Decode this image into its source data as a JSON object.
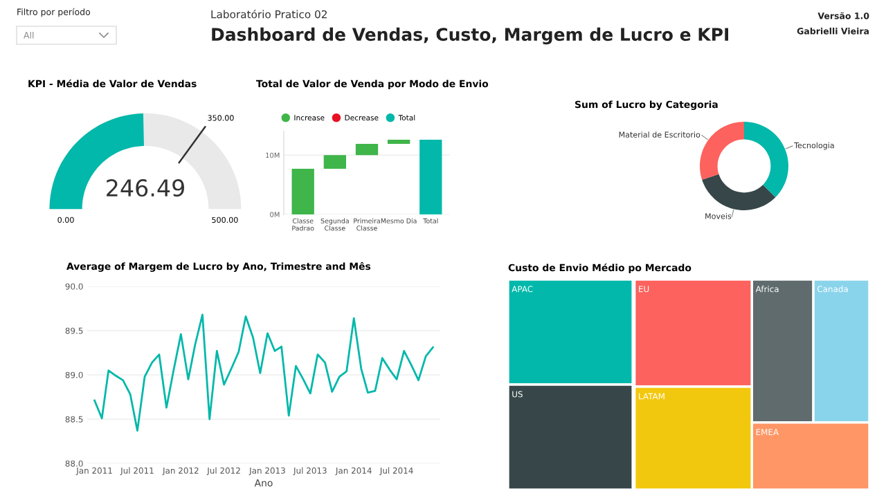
{
  "chart_data": [
    {
      "type": "other",
      "title": "Dashboard de Vendas, Custo, Margem de Lucro e KPI",
      "subtitle": "Laboratório Pratico 02",
      "annotations": [
        "Filtro por período",
        "All",
        "Versão 1.0",
        "Gabrielli Vieira"
      ]
    },
    {
      "type": "other",
      "title": "KPI - Média de Valor de Vendas",
      "values": [
        246.49
      ],
      "value_labels": [
        "246.49"
      ],
      "color": "#01b8aa",
      "annotations": [
        "0.00",
        "500.00",
        "350.00"
      ]
    },
    {
      "type": "bar",
      "title": "Total de Valor de Venda por Modo de Envio",
      "categories": [
        "Classe Padrao",
        "Segunda Classe",
        "Primeira Classe",
        "Mesmo Dia",
        "Total"
      ],
      "series": [
        {
          "name": "Increase",
          "color": "#3fb54a",
          "values": [
            7.7,
            2.3,
            1.9,
            0.7,
            null
          ],
          "base": [
            0,
            7.7,
            10.0,
            11.9,
            null
          ]
        },
        {
          "name": "Decrease",
          "color": "#e81123",
          "values": [
            null,
            null,
            null,
            null,
            null
          ]
        },
        {
          "name": "Total",
          "color": "#01b8aa",
          "values": [
            null,
            null,
            null,
            null,
            12.6
          ],
          "base": [
            null,
            null,
            null,
            null,
            0
          ]
        }
      ],
      "ylim": [
        0,
        14
      ],
      "yticks": [
        {
          "value": 0,
          "label": "0M"
        },
        {
          "value": 10,
          "label": "10M"
        }
      ],
      "grid": "y",
      "legend": "top left"
    },
    {
      "type": "donut",
      "title": "Sum of Lucro by Categoria",
      "categories": [
        "Tecnologia",
        "Moveis",
        "Material de Escritorio"
      ],
      "values": [
        37.5,
        32.5,
        30
      ],
      "colors": [
        "#01b8aa",
        "#374649",
        "#fd625e"
      ]
    },
    {
      "type": "line",
      "title": "Average of Margem de Lucro by Ano, Trimestre and Mês",
      "xlabel": "Ano",
      "x": [
        "2011-01",
        "2011-02",
        "2011-03",
        "2011-04",
        "2011-05",
        "2011-06",
        "2011-07",
        "2011-08",
        "2011-09",
        "2011-10",
        "2011-11",
        "2011-12",
        "2012-01",
        "2012-02",
        "2012-03",
        "2012-04",
        "2012-05",
        "2012-06",
        "2012-07",
        "2012-08",
        "2012-09",
        "2012-10",
        "2012-11",
        "2012-12",
        "2013-01",
        "2013-02",
        "2013-03",
        "2013-04",
        "2013-05",
        "2013-06",
        "2013-07",
        "2013-08",
        "2013-09",
        "2013-10",
        "2013-11",
        "2013-12",
        "2014-01",
        "2014-02",
        "2014-03",
        "2014-04",
        "2014-05",
        "2014-06",
        "2014-07",
        "2014-08",
        "2014-09",
        "2014-10",
        "2014-11",
        "2014-12"
      ],
      "series": [
        {
          "color": "#01b8aa",
          "values": [
            88.71,
            88.51,
            89.05,
            88.99,
            88.94,
            88.78,
            88.37,
            88.98,
            89.14,
            89.23,
            88.63,
            89.05,
            89.46,
            88.95,
            89.34,
            89.68,
            88.5,
            89.27,
            88.89,
            89.07,
            89.26,
            89.66,
            89.42,
            89.02,
            89.47,
            89.27,
            89.32,
            88.54,
            89.1,
            88.95,
            88.79,
            89.23,
            89.14,
            88.81,
            88.98,
            89.04,
            89.64,
            89.07,
            88.8,
            88.82,
            89.19,
            89.06,
            88.95,
            89.27,
            89.11,
            88.94,
            89.21,
            89.31
          ]
        }
      ],
      "xlim": [
        "2010-12-01",
        "2015-01-01"
      ],
      "xticks": [
        {
          "value": "2011-01",
          "label": "Jan 2011"
        },
        {
          "value": "2011-07",
          "label": "Jul 2011"
        },
        {
          "value": "2012-01",
          "label": "Jan 2012"
        },
        {
          "value": "2012-07",
          "label": "Jul 2012"
        },
        {
          "value": "2013-01",
          "label": "Jan 2013"
        },
        {
          "value": "2013-07",
          "label": "Jul 2013"
        },
        {
          "value": "2014-01",
          "label": "Jan 2014"
        },
        {
          "value": "2014-07",
          "label": "Jul 2014"
        }
      ],
      "ylim": [
        88,
        90
      ],
      "yticks": [
        {
          "value": 88,
          "label": "88.0"
        },
        {
          "value": 88.5,
          "label": "88.5"
        },
        {
          "value": 89,
          "label": "89.0"
        },
        {
          "value": 89.5,
          "label": "89.5"
        },
        {
          "value": 90,
          "label": "90.0"
        }
      ],
      "grid": "y",
      "marker": "none",
      "line_style": "solid"
    },
    {
      "type": "other",
      "title": "Custo de Envio Médio po Mercado",
      "categories": [
        "APAC",
        "EU",
        "US",
        "LATAM",
        "Africa",
        "Canada",
        "EMEA"
      ],
      "colors": [
        "#01b8aa",
        "#fd625e",
        "#374649",
        "#f2c80f",
        "#5f6b6d",
        "#8ad4eb",
        "#fe9666"
      ]
    }
  ]
}
